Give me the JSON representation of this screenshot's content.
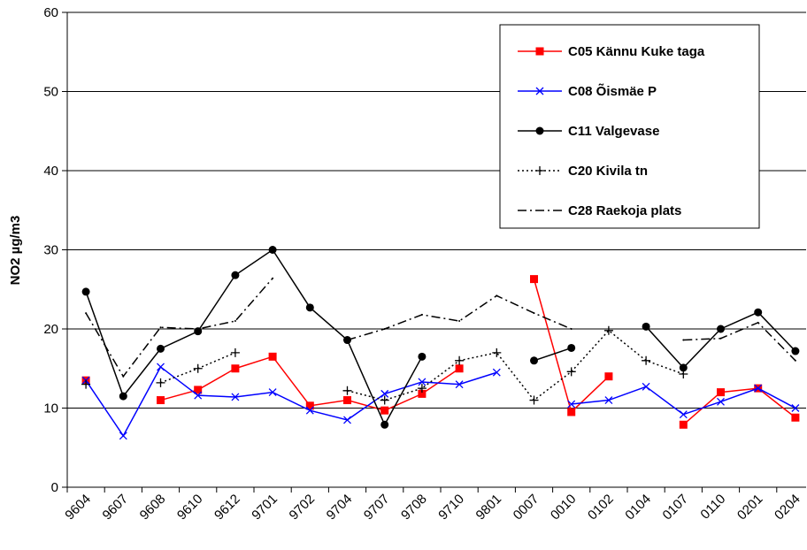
{
  "chart_data": {
    "type": "line",
    "y_label": "NO2 µg/m3",
    "categories": [
      "9604",
      "9607",
      "9608",
      "9610",
      "9612",
      "9701",
      "9702",
      "9704",
      "9707",
      "9708",
      "9710",
      "9801",
      "0007",
      "0010",
      "0102",
      "0104",
      "0107",
      "0110",
      "0201",
      "0204"
    ],
    "ylim": [
      0,
      60
    ],
    "yticks": [
      0,
      10,
      20,
      30,
      40,
      50,
      60
    ],
    "grid": true,
    "series": [
      {
        "name": "C05 Kännu Kuke taga",
        "color": "#ff0000",
        "marker": "square",
        "line_style": "solid",
        "values": [
          13.5,
          null,
          11,
          12.3,
          15,
          16.5,
          10.3,
          11,
          9.7,
          11.8,
          15,
          null,
          26.3,
          9.5,
          14,
          null,
          7.9,
          12,
          12.5,
          8.8
        ]
      },
      {
        "name": "C08 Õismäe P",
        "color": "#0000ff",
        "marker": "x",
        "line_style": "solid",
        "values": [
          13.5,
          6.5,
          15.2,
          11.6,
          11.4,
          12,
          9.7,
          8.5,
          11.8,
          13.3,
          13,
          14.5,
          null,
          10.5,
          11,
          12.7,
          9.2,
          10.8,
          12.5,
          10
        ]
      },
      {
        "name": "C11 Valgevase",
        "color": "#000000",
        "marker": "circle",
        "line_style": "solid",
        "values": [
          24.7,
          11.5,
          17.5,
          19.7,
          26.8,
          30,
          22.7,
          18.6,
          7.9,
          16.5,
          null,
          null,
          16,
          17.6,
          null,
          20.3,
          15.1,
          20,
          22.1,
          17.2
        ]
      },
      {
        "name": "C20 Kivila tn",
        "color": "#000000",
        "marker": "plus",
        "line_style": "dotted",
        "values": [
          13,
          null,
          13.2,
          15,
          17,
          null,
          null,
          12.2,
          11,
          12.5,
          16,
          17,
          11,
          14.6,
          19.8,
          16,
          14.3,
          null,
          null,
          null
        ]
      },
      {
        "name": "C28 Raekoja plats",
        "color": "#000000",
        "marker": "none",
        "line_style": "dashdot",
        "values": [
          22,
          14,
          20.2,
          20,
          21,
          26.4,
          null,
          18.6,
          20,
          21.8,
          21,
          24.2,
          22,
          20,
          null,
          null,
          18.6,
          18.8,
          20.8,
          16
        ]
      }
    ]
  }
}
